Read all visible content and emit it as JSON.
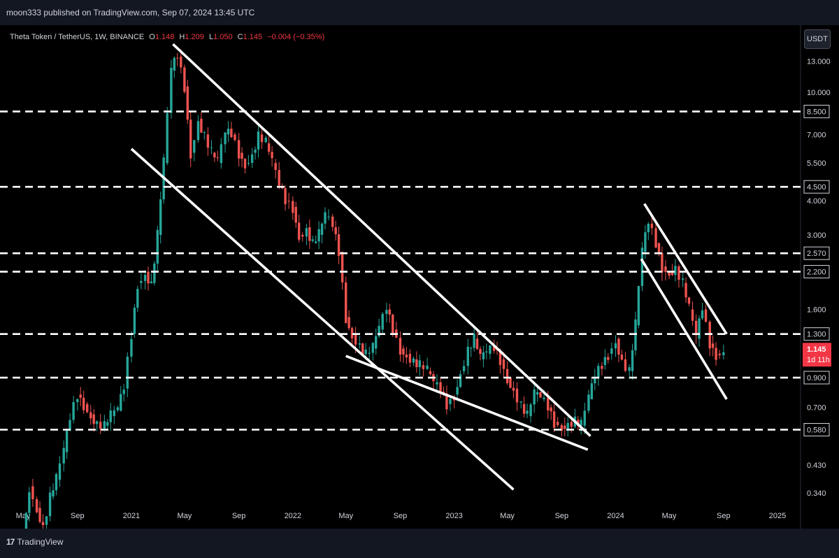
{
  "header": {
    "published": "moon333 published on TradingView.com, Sep 07, 2024 13:45 UTC"
  },
  "legend": {
    "symbol": "Theta Token / TetherUS, 1W, BINANCE",
    "o_label": "O",
    "o": "1.148",
    "h_label": "H",
    "h": "1.209",
    "l_label": "L",
    "l": "1.050",
    "c_label": "C",
    "c": "1.145",
    "change": "−0.004 (−0.35%)"
  },
  "currency": "USDT",
  "brand": {
    "logo": "17",
    "name": "TradingView"
  },
  "colors": {
    "up": "#26a69a",
    "down": "#ef5350",
    "background": "#000000",
    "lines": "#ffffff",
    "last_price": "#f23645"
  },
  "chart_data": {
    "type": "candlestick",
    "y_scale": "log",
    "ylim": [
      0.29,
      17.5
    ],
    "y_ticks": [
      13.0,
      10.0,
      7.0,
      5.5,
      4.0,
      3.0,
      1.6,
      0.7,
      0.43,
      0.34
    ],
    "y_tick_labels": [
      "13.000",
      "10.000",
      "7.000",
      "5.500",
      "4.000",
      "3.000",
      "1.600",
      "0.700",
      "0.430",
      "0.340"
    ],
    "x_ticks": [
      {
        "date": "2020-05",
        "label": "May"
      },
      {
        "date": "2020-09",
        "label": "Sep"
      },
      {
        "date": "2021-01",
        "label": "2021"
      },
      {
        "date": "2021-05",
        "label": "May"
      },
      {
        "date": "2021-09",
        "label": "Sep"
      },
      {
        "date": "2022-01",
        "label": "2022"
      },
      {
        "date": "2022-05",
        "label": "May"
      },
      {
        "date": "2022-09",
        "label": "Sep"
      },
      {
        "date": "2023-01",
        "label": "2023"
      },
      {
        "date": "2023-05",
        "label": "May"
      },
      {
        "date": "2023-09",
        "label": "Sep"
      },
      {
        "date": "2024-01",
        "label": "2024"
      },
      {
        "date": "2024-05",
        "label": "May"
      },
      {
        "date": "2024-09",
        "label": "Sep"
      },
      {
        "date": "2025-01",
        "label": "2025"
      }
    ],
    "horizontal_levels": [
      {
        "value": 8.5,
        "label": "8.500"
      },
      {
        "value": 4.5,
        "label": "4.500"
      },
      {
        "value": 2.57,
        "label": "2.570"
      },
      {
        "value": 2.2,
        "label": "2.200"
      },
      {
        "value": 1.3,
        "label": "1.300"
      },
      {
        "value": 0.9,
        "label": "0.900"
      },
      {
        "value": 0.58,
        "label": "0.580"
      }
    ],
    "last_price": {
      "value": 1.145,
      "label": "1.145",
      "countdown": "1d 11h"
    },
    "trendlines": [
      {
        "from": [
          "2021-04-05",
          15.0
        ],
        "to": [
          "2023-11-05",
          0.55
        ]
      },
      {
        "from": [
          "2021-01-01",
          6.2
        ],
        "to": [
          "2023-05-15",
          0.35
        ]
      },
      {
        "from": [
          "2022-05-01",
          1.08
        ],
        "to": [
          "2023-10-30",
          0.49
        ]
      },
      {
        "from": [
          "2024-03-06",
          3.9
        ],
        "to": [
          "2024-09-08",
          1.3
        ]
      },
      {
        "from": [
          "2024-02-28",
          2.45
        ],
        "to": [
          "2024-09-08",
          0.75
        ]
      }
    ],
    "weekly_closes_approx": [
      [
        "2020-05-01",
        0.22
      ],
      [
        "2020-05-15",
        0.36
      ],
      [
        "2020-06-01",
        0.3
      ],
      [
        "2020-06-15",
        0.26
      ],
      [
        "2020-07-01",
        0.33
      ],
      [
        "2020-07-15",
        0.38
      ],
      [
        "2020-08-01",
        0.48
      ],
      [
        "2020-08-15",
        0.63
      ],
      [
        "2020-09-01",
        0.78
      ],
      [
        "2020-09-15",
        0.72
      ],
      [
        "2020-10-01",
        0.66
      ],
      [
        "2020-10-15",
        0.62
      ],
      [
        "2020-11-01",
        0.6
      ],
      [
        "2020-11-15",
        0.65
      ],
      [
        "2020-12-01",
        0.68
      ],
      [
        "2020-12-15",
        0.82
      ],
      [
        "2021-01-01",
        1.3
      ],
      [
        "2021-01-15",
        2.0
      ],
      [
        "2021-02-01",
        2.2
      ],
      [
        "2021-02-15",
        2.0
      ],
      [
        "2021-03-01",
        3.0
      ],
      [
        "2021-03-15",
        5.5
      ],
      [
        "2021-04-01",
        12.0
      ],
      [
        "2021-04-15",
        13.5
      ],
      [
        "2021-05-01",
        10.5
      ],
      [
        "2021-05-15",
        6.0
      ],
      [
        "2021-06-01",
        8.0
      ],
      [
        "2021-06-15",
        7.0
      ],
      [
        "2021-07-01",
        6.0
      ],
      [
        "2021-07-15",
        5.5
      ],
      [
        "2021-08-01",
        7.0
      ],
      [
        "2021-08-15",
        7.0
      ],
      [
        "2021-09-01",
        6.0
      ],
      [
        "2021-09-15",
        5.5
      ],
      [
        "2021-10-01",
        6.0
      ],
      [
        "2021-10-15",
        7.0
      ],
      [
        "2021-11-01",
        6.5
      ],
      [
        "2021-11-15",
        5.5
      ],
      [
        "2021-12-01",
        4.5
      ],
      [
        "2021-12-15",
        4.0
      ],
      [
        "2022-01-01",
        3.8
      ],
      [
        "2022-01-15",
        3.0
      ],
      [
        "2022-02-01",
        3.2
      ],
      [
        "2022-02-15",
        2.8
      ],
      [
        "2022-03-01",
        3.0
      ],
      [
        "2022-03-15",
        3.5
      ],
      [
        "2022-04-01",
        3.2
      ],
      [
        "2022-04-15",
        2.6
      ],
      [
        "2022-05-01",
        1.5
      ],
      [
        "2022-05-15",
        1.3
      ],
      [
        "2022-06-01",
        1.2
      ],
      [
        "2022-06-15",
        1.1
      ],
      [
        "2022-07-01",
        1.15
      ],
      [
        "2022-07-15",
        1.35
      ],
      [
        "2022-08-01",
        1.6
      ],
      [
        "2022-08-15",
        1.35
      ],
      [
        "2022-09-01",
        1.15
      ],
      [
        "2022-09-15",
        1.1
      ],
      [
        "2022-10-01",
        1.05
      ],
      [
        "2022-10-15",
        1.0
      ],
      [
        "2022-11-01",
        0.95
      ],
      [
        "2022-11-15",
        0.85
      ],
      [
        "2022-12-01",
        0.8
      ],
      [
        "2022-12-15",
        0.72
      ],
      [
        "2023-01-01",
        0.78
      ],
      [
        "2023-01-15",
        0.95
      ],
      [
        "2023-02-01",
        1.15
      ],
      [
        "2023-02-15",
        1.25
      ],
      [
        "2023-03-01",
        1.05
      ],
      [
        "2023-03-15",
        1.1
      ],
      [
        "2023-04-01",
        1.15
      ],
      [
        "2023-04-15",
        1.05
      ],
      [
        "2023-05-01",
        0.9
      ],
      [
        "2023-05-15",
        0.82
      ],
      [
        "2023-06-01",
        0.72
      ],
      [
        "2023-06-15",
        0.65
      ],
      [
        "2023-07-01",
        0.78
      ],
      [
        "2023-07-15",
        0.75
      ],
      [
        "2023-08-01",
        0.7
      ],
      [
        "2023-08-15",
        0.62
      ],
      [
        "2023-09-01",
        0.6
      ],
      [
        "2023-09-15",
        0.62
      ],
      [
        "2023-10-01",
        0.63
      ],
      [
        "2023-10-15",
        0.6
      ],
      [
        "2023-11-01",
        0.75
      ],
      [
        "2023-11-15",
        0.9
      ],
      [
        "2023-12-01",
        1.0
      ],
      [
        "2023-12-15",
        1.1
      ],
      [
        "2024-01-01",
        1.25
      ],
      [
        "2024-01-15",
        1.05
      ],
      [
        "2024-02-01",
        0.95
      ],
      [
        "2024-02-15",
        1.4
      ],
      [
        "2024-03-01",
        2.6
      ],
      [
        "2024-03-15",
        3.3
      ],
      [
        "2024-04-01",
        2.8
      ],
      [
        "2024-04-15",
        2.3
      ],
      [
        "2024-05-01",
        2.2
      ],
      [
        "2024-05-15",
        2.3
      ],
      [
        "2024-06-01",
        2.0
      ],
      [
        "2024-06-15",
        1.6
      ],
      [
        "2024-07-01",
        1.25
      ],
      [
        "2024-07-15",
        1.6
      ],
      [
        "2024-08-01",
        1.2
      ],
      [
        "2024-08-15",
        1.1
      ],
      [
        "2024-09-01",
        1.145
      ]
    ]
  }
}
